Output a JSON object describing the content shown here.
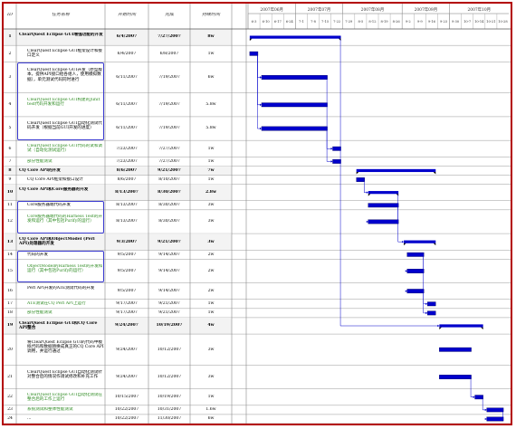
{
  "header": {
    "id": "ID",
    "name": "任务名称",
    "start": "开始时间",
    "finish": "完成",
    "duration": "持续时间",
    "months": [
      "2007年06月",
      "2007年07月",
      "2007年08月",
      "2007年09月",
      "2007年10月"
    ],
    "weeks": [
      "6-3",
      "6-10",
      "6-17",
      "6-24",
      "7-1",
      "7-8",
      "7-15",
      "7-22",
      "7-29",
      "8-5",
      "8-12",
      "8-19",
      "8-26",
      "9-2",
      "9-9",
      "9-16",
      "9-23",
      "9-30",
      "10-7",
      "10-14",
      "10-21",
      "10-28"
    ]
  },
  "tasks": [
    {
      "id": "1",
      "name": "ClearQuest Eclipse GUI增强功能的开发",
      "start": "6/4/2007",
      "finish": "7/27/2007",
      "dur": "8w",
      "style": "bold",
      "lines": 2,
      "bar": [
        "6/4/2007",
        "7/27/2007"
      ],
      "summary": true
    },
    {
      "id": "2",
      "name": "ClearQuest Eclipse GUI框架设计和接口定义",
      "start": "6/4/2007",
      "finish": "6/8/2007",
      "dur": "1w",
      "style": "",
      "lines": 2,
      "bar": [
        "6/4/2007",
        "6/8/2007"
      ]
    },
    {
      "id": "3",
      "name": "ClearQuest Eclipse GUI开发（原型版本，提供API接口给各组人，使用模拟数据），单元测试代码同时进行",
      "start": "6/11/2007",
      "finish": "7/19/2007",
      "dur": "6w",
      "style": "",
      "lines": 4,
      "bar": [
        "6/11/2007",
        "7/19/2007"
      ]
    },
    {
      "id": "4",
      "name": "ClearQuest Eclipse GUI构建的Junit test代码开发和运行",
      "start": "6/11/2007",
      "finish": "7/19/2007",
      "dur": "5.8w",
      "style": "green",
      "lines": 3,
      "bar": [
        "6/11/2007",
        "7/19/2007"
      ]
    },
    {
      "id": "5",
      "name": "ClearQuest Eclipse GUI自动化测试代码开发（根据当前GUI开发的进度）",
      "start": "6/11/2007",
      "finish": "7/19/2007",
      "dur": "5.8w",
      "style": "",
      "lines": 3,
      "bar": [
        "6/11/2007",
        "7/19/2007"
      ]
    },
    {
      "id": "6",
      "name": "ClearQuest Eclipse GUI代码的试和调试（自动化测试运行）",
      "start": "7/23/2007",
      "finish": "7/27/2007",
      "dur": "1w",
      "style": "green",
      "lines": 2,
      "bar": [
        "7/23/2007",
        "7/27/2007"
      ]
    },
    {
      "id": "7",
      "name": "部分性能测试",
      "start": "7/23/2007",
      "finish": "7/27/2007",
      "dur": "1w",
      "style": "green",
      "lines": 1,
      "bar": [
        "7/23/2007",
        "7/27/2007"
      ]
    },
    {
      "id": "8",
      "name": "CQ Core API的开发",
      "start": "8/6/2007",
      "finish": "9/21/2007",
      "dur": "7w",
      "style": "bold",
      "lines": 1,
      "bar": [
        "8/6/2007",
        "9/21/2007"
      ],
      "summary": true
    },
    {
      "id": "9",
      "name": "CQ Core API框架和接口设计",
      "start": "8/6/2007",
      "finish": "8/10/2007",
      "dur": "1w",
      "style": "",
      "lines": 1,
      "bar": [
        "8/6/2007",
        "8/10/2007"
      ]
    },
    {
      "id": "10",
      "name": "CQ Core API和Core服务器的开发",
      "start": "8/13/2007",
      "finish": "8/30/2007",
      "dur": "2.8w",
      "style": "bold",
      "lines": 2,
      "bar": [
        "8/13/2007",
        "8/30/2007"
      ],
      "summary": true
    },
    {
      "id": "11",
      "name": "Core服务器端代码开发",
      "start": "8/13/2007",
      "finish": "8/30/2007",
      "dur": "3w",
      "style": "",
      "lines": 1,
      "bar": [
        "8/13/2007",
        "8/30/2007"
      ]
    },
    {
      "id": "12",
      "name": "Core服务器端代码的Harness Test的开发和运行（其中包括Purify的运行）",
      "start": "8/13/2007",
      "finish": "8/30/2007",
      "dur": "3w",
      "style": "green",
      "lines": 3,
      "bar": [
        "8/13/2007",
        "8/30/2007"
      ]
    },
    {
      "id": "13",
      "name": "CQ Core API和ObjectModel (Perl API)处理器的开发",
      "start": "9/3/2007",
      "finish": "9/21/2007",
      "dur": "3w",
      "style": "bold",
      "lines": 2,
      "bar": [
        "9/3/2007",
        "9/21/2007"
      ],
      "summary": true
    },
    {
      "id": "14",
      "name": "代码的开发",
      "start": "9/5/2007",
      "finish": "9/14/2007",
      "dur": "2w",
      "style": "",
      "lines": 1,
      "bar": [
        "9/5/2007",
        "9/14/2007"
      ]
    },
    {
      "id": "15",
      "name": "ObjectModel的Harness Test的开发和运行（其中包括Purify的运行）",
      "start": "9/5/2007",
      "finish": "9/14/2007",
      "dur": "2w",
      "style": "green",
      "lines": 3,
      "bar": [
        "9/5/2007",
        "9/14/2007"
      ]
    },
    {
      "id": "16",
      "name": "Perl API开发的ATE测试代码的开发",
      "start": "9/5/2007",
      "finish": "9/14/2007",
      "dur": "2w",
      "style": "",
      "lines": 2,
      "bar": [
        "9/5/2007",
        "9/14/2007"
      ]
    },
    {
      "id": "17",
      "name": "ATE测试在CQ Perl API上运行",
      "start": "9/17/2007",
      "finish": "9/21/2007",
      "dur": "1w",
      "style": "green",
      "lines": 1,
      "bar": [
        "9/17/2007",
        "9/21/2007"
      ]
    },
    {
      "id": "18",
      "name": "部分性能测试",
      "start": "9/17/2007",
      "finish": "9/21/2007",
      "dur": "1w",
      "style": "green",
      "lines": 1,
      "bar": [
        "9/17/2007",
        "9/21/2007"
      ]
    },
    {
      "id": "19",
      "name": "ClearQuest Eclipse GUI和CQ Core API整合",
      "start": "9/24/2007",
      "finish": "10/19/2007",
      "dur": "4w",
      "style": "bold",
      "lines": 2,
      "bar": [
        "9/24/2007",
        "10/19/2007"
      ],
      "summary": true
    },
    {
      "id": "20",
      "name": "将ClearQuest Eclipse GUI的代码中模拟代码和数据替换成真正的CQ Core API调用，并运行通过",
      "start": "9/24/2007",
      "finish": "10/12/2007",
      "dur": "3w",
      "style": "",
      "lines": 4,
      "bar": [
        "9/24/2007",
        "10/12/2007"
      ]
    },
    {
      "id": "21",
      "name": "ClearQuest Eclipse GUI自动化测试针对整合后的情况作调试修改和补充工作",
      "start": "9/24/2007",
      "finish": "10/12/2007",
      "dur": "3w",
      "style": "",
      "lines": 3,
      "bar": [
        "9/24/2007",
        "10/12/2007"
      ]
    },
    {
      "id": "22",
      "name": "ClearQuest Eclipse GUI自动化测试在整合后的工作上运行",
      "start": "10/15/2007",
      "finish": "10/19/2007",
      "dur": "1w",
      "style": "green",
      "lines": 2,
      "bar": [
        "10/15/2007",
        "10/19/2007"
      ]
    },
    {
      "id": "23",
      "name": "系统测试和整体性能测试",
      "start": "10/22/2007",
      "finish": "10/31/2007",
      "dur": "1.6w",
      "style": "green",
      "lines": 1,
      "bar": [
        "10/22/2007",
        "10/31/2007"
      ]
    },
    {
      "id": "24",
      "name": "...",
      "start": "10/22/2007",
      "finish": "11/30/2007",
      "dur": "6w",
      "style": "",
      "lines": 1,
      "bar": [
        "10/22/2007",
        "10/31/2007"
      ]
    }
  ],
  "colors": {
    "bar": "#0000cc",
    "summary": "#000000",
    "frame": "#b30000",
    "green": "#2e8b22",
    "highlight": "#3a3ad0"
  }
}
